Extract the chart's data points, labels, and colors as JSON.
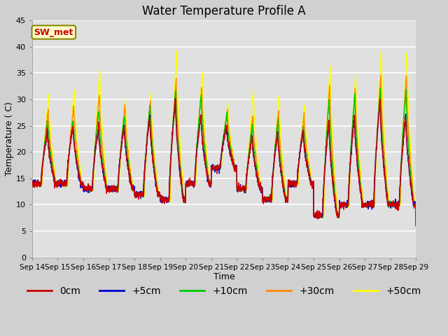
{
  "title": "Water Temperature Profile A",
  "xlabel": "Time",
  "ylabel": "Temperature (C)",
  "ylim": [
    0,
    45
  ],
  "yticks": [
    0,
    5,
    10,
    15,
    20,
    25,
    30,
    35,
    40,
    45
  ],
  "xtick_labels": [
    "Sep 14",
    "Sep 15",
    "Sep 16",
    "Sep 17",
    "Sep 18",
    "Sep 19",
    "Sep 20",
    "Sep 21",
    "Sep 22",
    "Sep 23",
    "Sep 24",
    "Sep 25",
    "Sep 26",
    "Sep 27",
    "Sep 28",
    "Sep 29"
  ],
  "legend_labels": [
    "0cm",
    "+5cm",
    "+10cm",
    "+30cm",
    "+50cm"
  ],
  "line_colors_ordered": [
    "#ffff00",
    "#ff8800",
    "#00cc00",
    "#0000cc",
    "#cc0000"
  ],
  "annotation_text": "SW_met",
  "annotation_color": "#cc0000",
  "annotation_bg": "#ffffcc",
  "annotation_border": "#888800",
  "fig_bg": "#d8d8d8",
  "plot_bg": "#e0e0e0",
  "grid_color": "#ffffff",
  "title_fontsize": 12,
  "axis_fontsize": 9,
  "legend_fontsize": 10,
  "n_days": 15,
  "points_per_day": 144
}
